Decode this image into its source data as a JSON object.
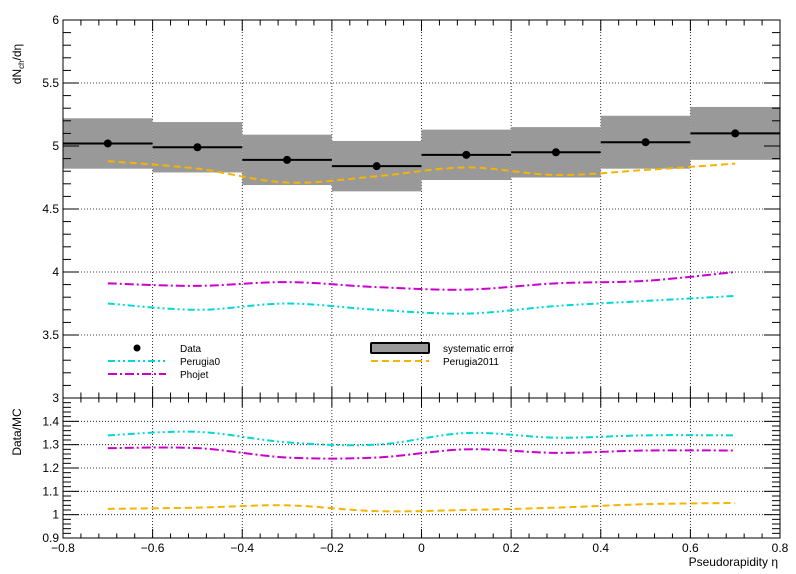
{
  "chart_data": [
    {
      "type": "line",
      "panel": "main",
      "ylabel": {
        "base": "dN",
        "sub": "ch",
        "tail": "/dη"
      },
      "xlim": [
        -0.8,
        0.8
      ],
      "ylim": [
        3.0,
        6.0
      ],
      "grid": true,
      "x_ticks": [
        "−0.8",
        "−0.6",
        "−0.4",
        "−0.2",
        "0",
        "0.2",
        "0.4",
        "0.6",
        "0.8"
      ],
      "y_ticks": [
        {
          "v": 3.0,
          "label": "3"
        },
        {
          "v": 3.5,
          "label": "3.5"
        },
        {
          "v": 4.0,
          "label": "4"
        },
        {
          "v": 4.5,
          "label": "4.5"
        },
        {
          "v": 5.0,
          "label": "5"
        },
        {
          "v": 5.5,
          "label": "5.5"
        },
        {
          "v": 6.0,
          "label": "6"
        }
      ],
      "bins": [
        {
          "x": -0.7,
          "lo": -0.8,
          "hi": -0.6,
          "value": 5.02,
          "syst": 0.2
        },
        {
          "x": -0.5,
          "lo": -0.6,
          "hi": -0.4,
          "value": 4.99,
          "syst": 0.2
        },
        {
          "x": -0.3,
          "lo": -0.4,
          "hi": -0.2,
          "value": 4.89,
          "syst": 0.2
        },
        {
          "x": -0.1,
          "lo": -0.2,
          "hi": 0.0,
          "value": 4.84,
          "syst": 0.2
        },
        {
          "x": 0.1,
          "lo": 0.0,
          "hi": 0.2,
          "value": 4.93,
          "syst": 0.2
        },
        {
          "x": 0.3,
          "lo": 0.2,
          "hi": 0.4,
          "value": 4.95,
          "syst": 0.2
        },
        {
          "x": 0.5,
          "lo": 0.4,
          "hi": 0.6,
          "value": 5.03,
          "syst": 0.21
        },
        {
          "x": 0.7,
          "lo": 0.6,
          "hi": 0.8,
          "value": 5.1,
          "syst": 0.21
        }
      ],
      "series": [
        {
          "name": "Perugia2011",
          "color": "#f5b400",
          "dash": "7,4",
          "x": [
            -0.7,
            -0.5,
            -0.3,
            -0.1,
            0.1,
            0.3,
            0.5,
            0.7
          ],
          "y": [
            4.88,
            4.82,
            4.71,
            4.76,
            4.83,
            4.77,
            4.81,
            4.86
          ]
        },
        {
          "name": "Perugia0",
          "color": "#00d8d8",
          "dash": "7,3,2,3,2,3",
          "x": [
            -0.7,
            -0.5,
            -0.3,
            -0.1,
            0.1,
            0.3,
            0.5,
            0.7
          ],
          "y": [
            3.75,
            3.7,
            3.75,
            3.7,
            3.67,
            3.73,
            3.77,
            3.81
          ]
        },
        {
          "name": "Phojet",
          "color": "#cc00cc",
          "dash": "9,3,2,3",
          "x": [
            -0.7,
            -0.5,
            -0.3,
            -0.1,
            0.1,
            0.3,
            0.5,
            0.7
          ],
          "y": [
            3.91,
            3.89,
            3.92,
            3.88,
            3.86,
            3.91,
            3.93,
            4.0
          ]
        }
      ],
      "legend": {
        "left": [
          {
            "label": "Data",
            "kind": "marker"
          },
          {
            "label": "Perugia0",
            "kind": "line",
            "series": "Perugia0"
          },
          {
            "label": "Phojet",
            "kind": "line",
            "series": "Phojet"
          }
        ],
        "right": [
          {
            "label": "systematic error",
            "kind": "box"
          },
          {
            "label": "Perugia2011",
            "kind": "line",
            "series": "Perugia2011"
          }
        ]
      }
    },
    {
      "type": "line",
      "panel": "ratio",
      "ylabel": "Data/MC",
      "xlabel": "Pseudorapidity η",
      "xlim": [
        -0.8,
        0.8
      ],
      "ylim": [
        0.9,
        1.5
      ],
      "grid": true,
      "y_ticks": [
        {
          "v": 0.9,
          "label": "0.9"
        },
        {
          "v": 1.0,
          "label": "1"
        },
        {
          "v": 1.1,
          "label": "1.1"
        },
        {
          "v": 1.2,
          "label": "1.2"
        },
        {
          "v": 1.3,
          "label": "1.3"
        },
        {
          "v": 1.4,
          "label": "1.4"
        }
      ],
      "series": [
        {
          "name": "Perugia0",
          "color": "#00d8d8",
          "dash": "7,3,2,3,2,3",
          "x": [
            -0.7,
            -0.5,
            -0.3,
            -0.1,
            0.1,
            0.3,
            0.5,
            0.7
          ],
          "y": [
            1.34,
            1.355,
            1.31,
            1.3,
            1.35,
            1.33,
            1.34,
            1.34
          ]
        },
        {
          "name": "Phojet",
          "color": "#cc00cc",
          "dash": "9,3,2,3",
          "x": [
            -0.7,
            -0.5,
            -0.3,
            -0.1,
            0.1,
            0.3,
            0.5,
            0.7
          ],
          "y": [
            1.285,
            1.285,
            1.245,
            1.245,
            1.28,
            1.265,
            1.275,
            1.275
          ]
        },
        {
          "name": "Perugia2011",
          "color": "#f5b400",
          "dash": "7,4",
          "x": [
            -0.7,
            -0.5,
            -0.3,
            -0.1,
            0.1,
            0.3,
            0.5,
            0.7
          ],
          "y": [
            1.025,
            1.03,
            1.04,
            1.015,
            1.02,
            1.03,
            1.045,
            1.05
          ]
        }
      ]
    }
  ]
}
